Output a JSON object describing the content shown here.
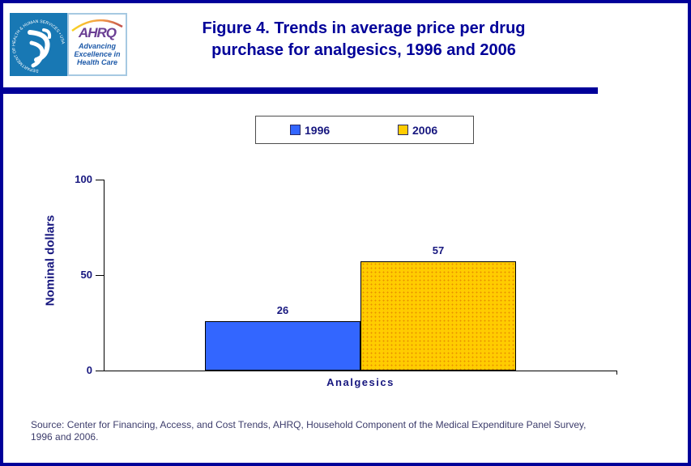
{
  "header": {
    "title_line1": "Figure 4. Trends in average price per drug",
    "title_line2": "purchase for analgesics, 1996 and 2006",
    "logo": {
      "seal_text": "DEPARTMENT OF HEALTH & HUMAN SERVICES • USA",
      "acronym": "AHRQ",
      "tagline_line1": "Advancing",
      "tagline_line2": "Excellence in",
      "tagline_line3": "Health Care"
    }
  },
  "legend": {
    "items": [
      {
        "label": "1996",
        "color": "#3366FF"
      },
      {
        "label": "2006",
        "color": "#FFCC00"
      }
    ]
  },
  "chart_data": {
    "type": "bar",
    "categories": [
      "Analgesics"
    ],
    "series": [
      {
        "name": "1996",
        "values": [
          26
        ],
        "color": "#3366FF",
        "pattern": "solid"
      },
      {
        "name": "2006",
        "values": [
          57
        ],
        "color": "#FFCC00",
        "pattern": "dots"
      }
    ],
    "title": "Figure 4. Trends in average price per drug purchase for analgesics, 1996 and 2006",
    "xlabel": "Analgesics",
    "ylabel": "Nominal dollars",
    "ylim": [
      0,
      100
    ],
    "yticks": [
      0,
      50,
      100
    ],
    "grid": false,
    "legend_position": "top",
    "data_labels": [
      26,
      57
    ]
  },
  "colors": {
    "accent_navy": "#000099",
    "bar_1996": "#3366FF",
    "bar_2006": "#FFCC00",
    "hhs_teal": "#1878B4",
    "ahrq_purple": "#6B3F94",
    "tagline_blue": "#1E5AA9"
  },
  "source": {
    "line1": "Source: Center for Financing, Access, and Cost Trends, AHRQ, Household Component of the Medical Expenditure Panel Survey,",
    "line2": "1996 and 2006."
  }
}
